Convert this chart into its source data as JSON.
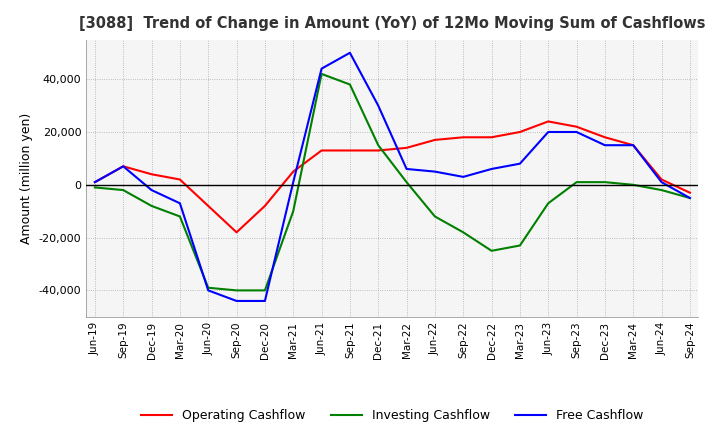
{
  "title": "[3088]  Trend of Change in Amount (YoY) of 12Mo Moving Sum of Cashflows",
  "ylabel": "Amount (million yen)",
  "ylim": [
    -50000,
    55000
  ],
  "yticks": [
    -40000,
    -20000,
    0,
    20000,
    40000
  ],
  "background_color": "#ffffff",
  "plot_bg_color": "#f5f5f5",
  "grid_color": "#aaaaaa",
  "labels": [
    "Jun-19",
    "Sep-19",
    "Dec-19",
    "Mar-20",
    "Jun-20",
    "Sep-20",
    "Dec-20",
    "Mar-21",
    "Jun-21",
    "Sep-21",
    "Dec-21",
    "Mar-22",
    "Jun-22",
    "Sep-22",
    "Dec-22",
    "Mar-23",
    "Jun-23",
    "Sep-23",
    "Dec-23",
    "Mar-24",
    "Jun-24",
    "Sep-24"
  ],
  "operating": [
    1000,
    7000,
    4000,
    2000,
    -8000,
    -18000,
    -8000,
    5000,
    13000,
    13000,
    13000,
    14000,
    17000,
    18000,
    18000,
    20000,
    24000,
    22000,
    18000,
    15000,
    2000,
    -3000
  ],
  "investing": [
    -1000,
    -2000,
    -8000,
    -12000,
    -39000,
    -40000,
    -40000,
    -10000,
    42000,
    38000,
    15000,
    1000,
    -12000,
    -18000,
    -25000,
    -23000,
    -7000,
    1000,
    1000,
    0,
    -2000,
    -5000
  ],
  "free": [
    1000,
    7000,
    -2000,
    -7000,
    -40000,
    -44000,
    -44000,
    1000,
    44000,
    50000,
    30000,
    6000,
    5000,
    3000,
    6000,
    8000,
    20000,
    20000,
    15000,
    15000,
    1000,
    -5000
  ],
  "operating_color": "#ff0000",
  "investing_color": "#008000",
  "free_color": "#0000ff",
  "legend_labels": [
    "Operating Cashflow",
    "Investing Cashflow",
    "Free Cashflow"
  ]
}
